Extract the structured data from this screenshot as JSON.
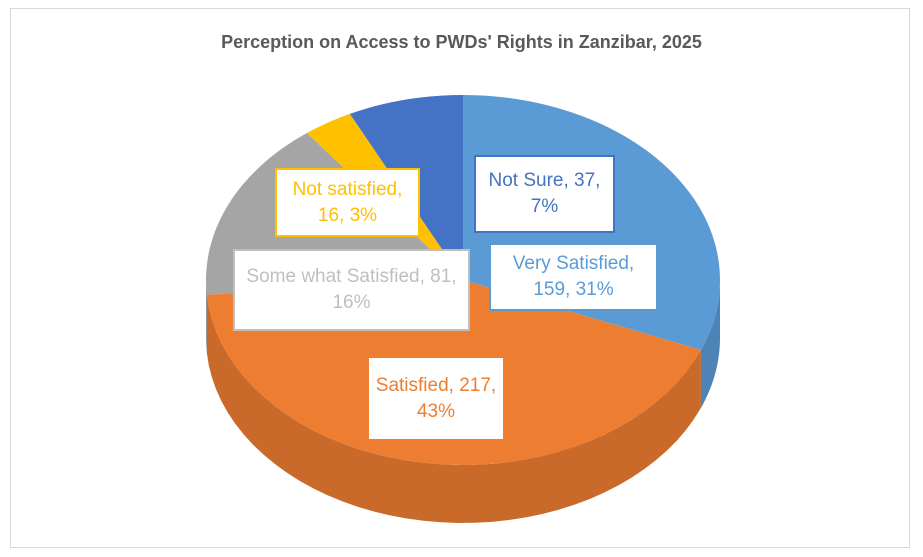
{
  "chart_data": {
    "type": "pie3d",
    "title": "Perception on Access to PWDs' Rights in Zanzibar, 2025",
    "values": [
      159,
      217,
      81,
      16,
      37
    ],
    "value_labels": [
      "Very  Satisfied, 159, 31%",
      "Satisfied, 217, 43%",
      "Some what Satisfied, 81, 16%",
      "Not satisfied, 16, 3%",
      "Not Sure, 37, 7%"
    ],
    "colors": [
      "#5b9bd5",
      "#ed7d31",
      "#a5a5a5",
      "#ffc000",
      "#4472c4"
    ]
  }
}
